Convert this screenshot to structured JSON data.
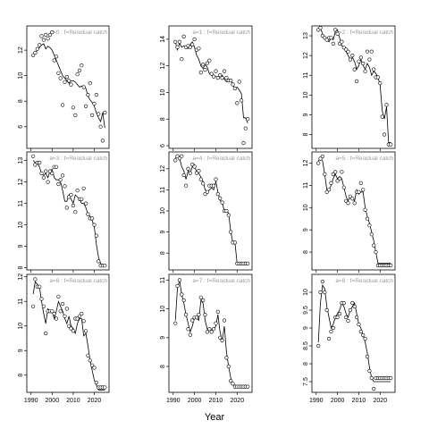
{
  "figure": {
    "xlabel": "Year"
  },
  "chart_data": [
    {
      "type": "line",
      "label": "a=0  :  f=Residual catch",
      "xlim": [
        1988,
        2027
      ],
      "ylim": [
        4.3,
        13.9
      ],
      "xticks": [
        1990,
        2000,
        2010,
        2020
      ],
      "yticks": [
        6,
        8,
        10,
        12
      ],
      "x": [
        1991,
        1992,
        1993,
        1994,
        1995,
        1996,
        1997,
        1998,
        1999,
        2000,
        2001,
        2002,
        2003,
        2004,
        2005,
        2006,
        2007,
        2008,
        2009,
        2010,
        2011,
        2012,
        2013,
        2014,
        2015,
        2016,
        2017,
        2018,
        2019,
        2020,
        2021,
        2022,
        2023,
        2024,
        2025
      ],
      "fit": [
        11.7,
        11.8,
        12.0,
        12.2,
        12.4,
        12.5,
        12.1,
        12.3,
        12.2,
        12.0,
        11.6,
        11.2,
        10.8,
        10.4,
        10.0,
        9.8,
        9.6,
        9.4,
        9.6,
        9.6,
        9.5,
        9.3,
        9.1,
        9.2,
        9.1,
        9.0,
        8.4,
        8.1,
        7.9,
        7.6,
        7.1,
        6.7,
        6.4,
        7.1,
        5.9
      ],
      "obs": [
        11.6,
        11.8,
        12.1,
        12.4,
        13.1,
        12.8,
        13.2,
        12.9,
        13.2,
        13.4,
        11.2,
        11.5,
        10.2,
        9.8,
        7.7,
        9.5,
        9.9,
        9.6,
        9.3,
        7.5,
        6.9,
        10.1,
        10.4,
        10.8,
        9.1,
        7.6,
        8.5,
        9.4,
        6.9,
        7.8,
        8.5,
        7.0,
        6.0,
        4.9,
        7.1
      ]
    },
    {
      "type": "line",
      "label": "a=3  :  f=Residual catch",
      "xlim": [
        1988,
        2027
      ],
      "ylim": [
        7.9,
        13.4
      ],
      "xticks": [
        1990,
        2000,
        2010,
        2020
      ],
      "yticks": [
        8,
        9,
        10,
        11,
        12,
        13
      ],
      "x": [
        1991,
        1992,
        1993,
        1994,
        1995,
        1996,
        1997,
        1998,
        1999,
        2000,
        2001,
        2002,
        2003,
        2004,
        2005,
        2006,
        2007,
        2008,
        2009,
        2010,
        2011,
        2012,
        2013,
        2014,
        2015,
        2016,
        2017,
        2018,
        2019,
        2020,
        2021,
        2022,
        2023,
        2024,
        2025
      ],
      "fit": [
        13.0,
        12.9,
        12.9,
        12.7,
        12.4,
        12.3,
        12.4,
        12.2,
        12.5,
        12.6,
        12.2,
        12.1,
        12.1,
        12.0,
        11.6,
        11.1,
        11.1,
        11.4,
        11.2,
        11.0,
        11.4,
        11.3,
        11.2,
        11.0,
        11.0,
        10.8,
        10.5,
        10.4,
        10.2,
        9.9,
        9.1,
        8.5,
        8.2,
        8.1,
        8.1
      ],
      "obs": [
        13.2,
        12.8,
        12.9,
        12.9,
        12.4,
        12.2,
        12.5,
        12.0,
        12.5,
        12.4,
        12.7,
        12.7,
        11.9,
        12.1,
        12.3,
        11.8,
        10.8,
        11.3,
        11.4,
        10.9,
        10.6,
        11.6,
        11.2,
        11.2,
        11.7,
        11.0,
        10.5,
        10.3,
        10.3,
        10.0,
        9.5,
        8.3,
        8.1,
        8.1,
        8.1
      ]
    },
    {
      "type": "line",
      "label": "a=6  :  f=Residual catch",
      "xlim": [
        1988,
        2027
      ],
      "ylim": [
        7.3,
        12.1
      ],
      "xticks": [
        1990,
        2000,
        2010,
        2020
      ],
      "yticks": [
        8,
        9,
        10,
        11,
        12
      ],
      "x": [
        1991,
        1992,
        1993,
        1994,
        1995,
        1996,
        1997,
        1998,
        1999,
        2000,
        2001,
        2002,
        2003,
        2004,
        2005,
        2006,
        2007,
        2008,
        2009,
        2010,
        2011,
        2012,
        2013,
        2014,
        2015,
        2016,
        2017,
        2018,
        2019,
        2020,
        2021,
        2022,
        2023,
        2024,
        2025
      ],
      "fit": [
        11.3,
        11.8,
        11.7,
        11.6,
        11.0,
        10.5,
        10.1,
        10.7,
        10.6,
        10.6,
        10.3,
        10.6,
        11.0,
        10.8,
        10.6,
        10.3,
        10.1,
        10.4,
        10.0,
        9.9,
        9.7,
        10.1,
        10.3,
        10.3,
        9.6,
        9.7,
        9.2,
        8.6,
        8.2,
        7.8,
        7.6,
        7.4,
        7.4,
        7.4,
        7.4
      ],
      "obs": [
        10.8,
        11.9,
        11.6,
        11.6,
        11.1,
        10.8,
        9.7,
        10.6,
        10.6,
        10.6,
        10.5,
        10.3,
        11.2,
        10.6,
        10.9,
        10.4,
        10.7,
        10.0,
        9.9,
        9.8,
        10.3,
        10.3,
        10.4,
        10.5,
        10.2,
        9.8,
        8.8,
        8.6,
        8.4,
        8.3,
        7.7,
        7.5,
        7.5,
        7.5,
        7.5
      ]
    },
    {
      "type": "line",
      "label": "a=1  :  f=Residual catch",
      "xlim": [
        1988,
        2027
      ],
      "ylim": [
        5.8,
        15.0
      ],
      "xticks": [
        1990,
        2000,
        2010,
        2020
      ],
      "yticks": [
        6,
        8,
        10,
        12,
        14
      ],
      "x": [
        1991,
        1992,
        1993,
        1994,
        1995,
        1996,
        1997,
        1998,
        1999,
        2000,
        2001,
        2002,
        2003,
        2004,
        2005,
        2006,
        2007,
        2008,
        2009,
        2010,
        2011,
        2012,
        2013,
        2014,
        2015,
        2016,
        2017,
        2018,
        2019,
        2020,
        2021,
        2022,
        2023,
        2024,
        2025
      ],
      "fit": [
        13.8,
        13.2,
        13.7,
        13.4,
        13.5,
        13.4,
        13.3,
        13.6,
        13.8,
        13.4,
        12.8,
        12.5,
        12.0,
        11.8,
        12.1,
        11.9,
        11.4,
        11.3,
        11.2,
        11.2,
        11.1,
        11.2,
        11.3,
        11.0,
        10.8,
        10.9,
        11.0,
        10.6,
        10.3,
        10.4,
        10.2,
        9.9,
        8.1,
        8.1,
        7.7
      ],
      "obs": [
        13.8,
        13.4,
        13.8,
        12.5,
        14.2,
        13.4,
        13.5,
        13.4,
        13.6,
        14.0,
        13.2,
        13.3,
        11.5,
        12.1,
        11.7,
        12.2,
        12.4,
        11.4,
        11.2,
        11.6,
        11.1,
        11.3,
        11.1,
        11.6,
        11.1,
        10.9,
        10.9,
        10.6,
        10.3,
        9.2,
        10.8,
        9.4,
        6.2,
        7.3,
        8.0
      ]
    },
    {
      "type": "line",
      "label": "a=4  :  f=Residual catch",
      "xlim": [
        1988,
        2027
      ],
      "ylim": [
        7.2,
        12.8
      ],
      "xticks": [
        1990,
        2000,
        2010,
        2020
      ],
      "yticks": [
        8,
        9,
        10,
        11,
        12
      ],
      "x": [
        1991,
        1992,
        1993,
        1994,
        1995,
        1996,
        1997,
        1998,
        1999,
        2000,
        2001,
        2002,
        2003,
        2004,
        2005,
        2006,
        2007,
        2008,
        2009,
        2010,
        2011,
        2012,
        2013,
        2014,
        2015,
        2016,
        2017,
        2018,
        2019,
        2020,
        2021,
        2022,
        2023,
        2024,
        2025
      ],
      "fit": [
        12.5,
        12.6,
        12.5,
        12.1,
        11.9,
        11.5,
        11.9,
        11.8,
        12.1,
        12.2,
        11.8,
        11.8,
        11.6,
        11.4,
        11.0,
        10.9,
        11.0,
        11.1,
        11.0,
        11.4,
        10.9,
        10.5,
        10.4,
        10.0,
        10.0,
        9.9,
        9.0,
        8.5,
        8.5,
        7.5,
        7.5,
        7.5,
        7.5,
        7.5,
        7.5
      ],
      "obs": [
        12.4,
        12.6,
        12.5,
        12.6,
        11.7,
        11.2,
        12.0,
        11.8,
        12.2,
        12.1,
        11.8,
        11.9,
        11.5,
        11.3,
        10.8,
        10.9,
        11.2,
        11.2,
        11.2,
        11.5,
        10.8,
        10.6,
        10.4,
        10.0,
        10.0,
        9.8,
        9.0,
        8.5,
        8.5,
        7.5,
        7.5,
        7.5,
        7.5,
        7.5,
        7.5
      ]
    },
    {
      "type": "line",
      "label": "a=7  :  f=Residual catch",
      "xlim": [
        1988,
        2027
      ],
      "ylim": [
        7.1,
        11.2
      ],
      "xticks": [
        1990,
        2000,
        2010,
        2020
      ],
      "yticks": [
        8,
        9,
        10,
        11
      ],
      "x": [
        1991,
        1992,
        1993,
        1994,
        1995,
        1996,
        1997,
        1998,
        1999,
        2000,
        2001,
        2002,
        2003,
        2004,
        2005,
        2006,
        2007,
        2008,
        2009,
        2010,
        2011,
        2012,
        2013,
        2014,
        2015,
        2016,
        2017,
        2018,
        2019,
        2020,
        2021,
        2022,
        2023,
        2024,
        2025
      ],
      "fit": [
        9.6,
        10.7,
        11.0,
        10.5,
        10.2,
        9.8,
        9.5,
        9.2,
        9.4,
        9.7,
        9.7,
        9.6,
        10.3,
        10.2,
        9.6,
        9.3,
        9.3,
        9.3,
        9.3,
        9.4,
        9.8,
        9.2,
        8.9,
        9.4,
        8.5,
        8.0,
        7.6,
        7.4,
        7.3,
        7.3,
        7.3,
        7.3,
        7.3,
        7.3,
        7.3
      ],
      "obs": [
        9.5,
        10.8,
        11.0,
        10.5,
        10.3,
        9.8,
        9.3,
        9.1,
        9.6,
        9.7,
        9.7,
        9.8,
        10.4,
        10.3,
        9.8,
        9.2,
        9.3,
        9.2,
        9.3,
        9.5,
        9.9,
        9.0,
        8.9,
        9.6,
        8.3,
        8.0,
        7.5,
        7.4,
        7.3,
        7.3,
        7.3,
        7.3,
        7.3,
        7.3,
        7.3
      ]
    },
    {
      "type": "line",
      "label": "a=2  :  f=Residual catch",
      "xlim": [
        1988,
        2027
      ],
      "ylim": [
        7.3,
        13.5
      ],
      "xticks": [
        1990,
        2000,
        2010,
        2020
      ],
      "yticks": [
        8,
        9,
        10,
        11,
        12,
        13
      ],
      "x": [
        1991,
        1992,
        1993,
        1994,
        1995,
        1996,
        1997,
        1998,
        1999,
        2000,
        2001,
        2002,
        2003,
        2004,
        2005,
        2006,
        2007,
        2008,
        2009,
        2010,
        2011,
        2012,
        2013,
        2014,
        2015,
        2016,
        2017,
        2018,
        2019,
        2020,
        2021,
        2022,
        2023,
        2024,
        2025
      ],
      "fit": [
        13.2,
        13.4,
        13.1,
        12.9,
        12.8,
        12.7,
        12.9,
        12.8,
        13.2,
        13.3,
        12.9,
        12.5,
        12.4,
        12.2,
        12.0,
        11.8,
        11.9,
        11.7,
        11.3,
        11.5,
        11.8,
        11.5,
        11.3,
        11.6,
        11.4,
        11.0,
        11.2,
        11.1,
        10.9,
        10.5,
        9.2,
        8.8,
        9.4,
        7.6,
        7.6
      ],
      "obs": [
        13.3,
        13.4,
        13.0,
        12.9,
        12.8,
        12.9,
        12.9,
        12.6,
        13.3,
        13.1,
        12.6,
        12.7,
        12.4,
        12.3,
        12.2,
        11.8,
        12.0,
        11.3,
        10.7,
        11.7,
        11.9,
        11.6,
        11.2,
        12.2,
        11.8,
        12.2,
        11.3,
        10.9,
        10.9,
        10.6,
        8.9,
        8.0,
        9.5,
        7.5,
        7.5
      ]
    },
    {
      "type": "line",
      "label": "a=5  :  f=Residual catch",
      "xlim": [
        1988,
        2027
      ],
      "ylim": [
        7.2,
        12.5
      ],
      "xticks": [
        1990,
        2000,
        2010,
        2020
      ],
      "yticks": [
        8,
        9,
        10,
        11,
        12
      ],
      "x": [
        1991,
        1992,
        1993,
        1994,
        1995,
        1996,
        1997,
        1998,
        1999,
        2000,
        2001,
        2002,
        2003,
        2004,
        2005,
        2006,
        2007,
        2008,
        2009,
        2010,
        2011,
        2012,
        2013,
        2014,
        2015,
        2016,
        2017,
        2018,
        2019,
        2020,
        2021,
        2022,
        2023,
        2024,
        2025
      ],
      "fit": [
        12.1,
        12.2,
        12.1,
        11.5,
        10.8,
        10.8,
        11.0,
        11.3,
        11.5,
        11.3,
        11.4,
        11.3,
        10.9,
        10.5,
        10.3,
        10.5,
        10.4,
        10.3,
        10.8,
        10.6,
        10.7,
        10.7,
        10.0,
        9.6,
        9.3,
        8.9,
        8.5,
        8.0,
        7.5,
        7.5,
        7.5,
        7.5,
        7.5,
        7.5,
        7.5
      ],
      "obs": [
        12.0,
        12.2,
        12.3,
        11.5,
        10.7,
        10.8,
        11.1,
        11.5,
        11.6,
        11.2,
        11.3,
        11.6,
        10.9,
        10.3,
        10.2,
        10.5,
        10.4,
        10.2,
        10.7,
        10.7,
        11.1,
        10.8,
        9.9,
        9.5,
        9.2,
        8.8,
        8.3,
        8.0,
        7.4,
        7.4,
        7.4,
        7.4,
        7.4,
        7.4,
        7.4
      ]
    },
    {
      "type": "line",
      "label": "a=8  :  f=Residual catch",
      "xlim": [
        1988,
        2027
      ],
      "ylim": [
        7.2,
        10.5
      ],
      "xticks": [
        1990,
        2000,
        2010,
        2020
      ],
      "yticks": [
        7.5,
        8.0,
        8.5,
        9.0,
        9.5,
        10.0
      ],
      "x": [
        1991,
        1992,
        1993,
        1994,
        1995,
        1996,
        1997,
        1998,
        1999,
        2000,
        2001,
        2002,
        2003,
        2004,
        2005,
        2006,
        2007,
        2008,
        2009,
        2010,
        2011,
        2012,
        2013,
        2014,
        2015,
        2016,
        2017,
        2018,
        2019,
        2020,
        2021,
        2022,
        2023,
        2024,
        2025
      ],
      "fit": [
        8.6,
        9.7,
        10.2,
        10.1,
        9.6,
        9.3,
        9.0,
        9.1,
        9.3,
        9.4,
        9.5,
        9.7,
        9.6,
        9.4,
        9.3,
        9.5,
        9.6,
        9.7,
        9.4,
        9.1,
        9.0,
        8.8,
        8.6,
        8.3,
        7.9,
        7.6,
        7.5,
        7.5,
        7.5,
        7.5,
        7.5,
        7.5,
        7.5,
        7.5,
        7.5
      ],
      "obs": [
        8.5,
        10.0,
        10.3,
        10.0,
        9.5,
        8.7,
        8.9,
        9.0,
        9.3,
        9.3,
        9.4,
        9.7,
        9.7,
        9.3,
        9.2,
        9.5,
        9.7,
        9.6,
        9.3,
        9.1,
        8.9,
        8.8,
        8.7,
        8.2,
        7.8,
        7.6,
        7.3,
        7.6,
        7.6,
        7.6,
        7.6,
        7.6,
        7.6,
        7.6,
        7.6
      ]
    }
  ]
}
